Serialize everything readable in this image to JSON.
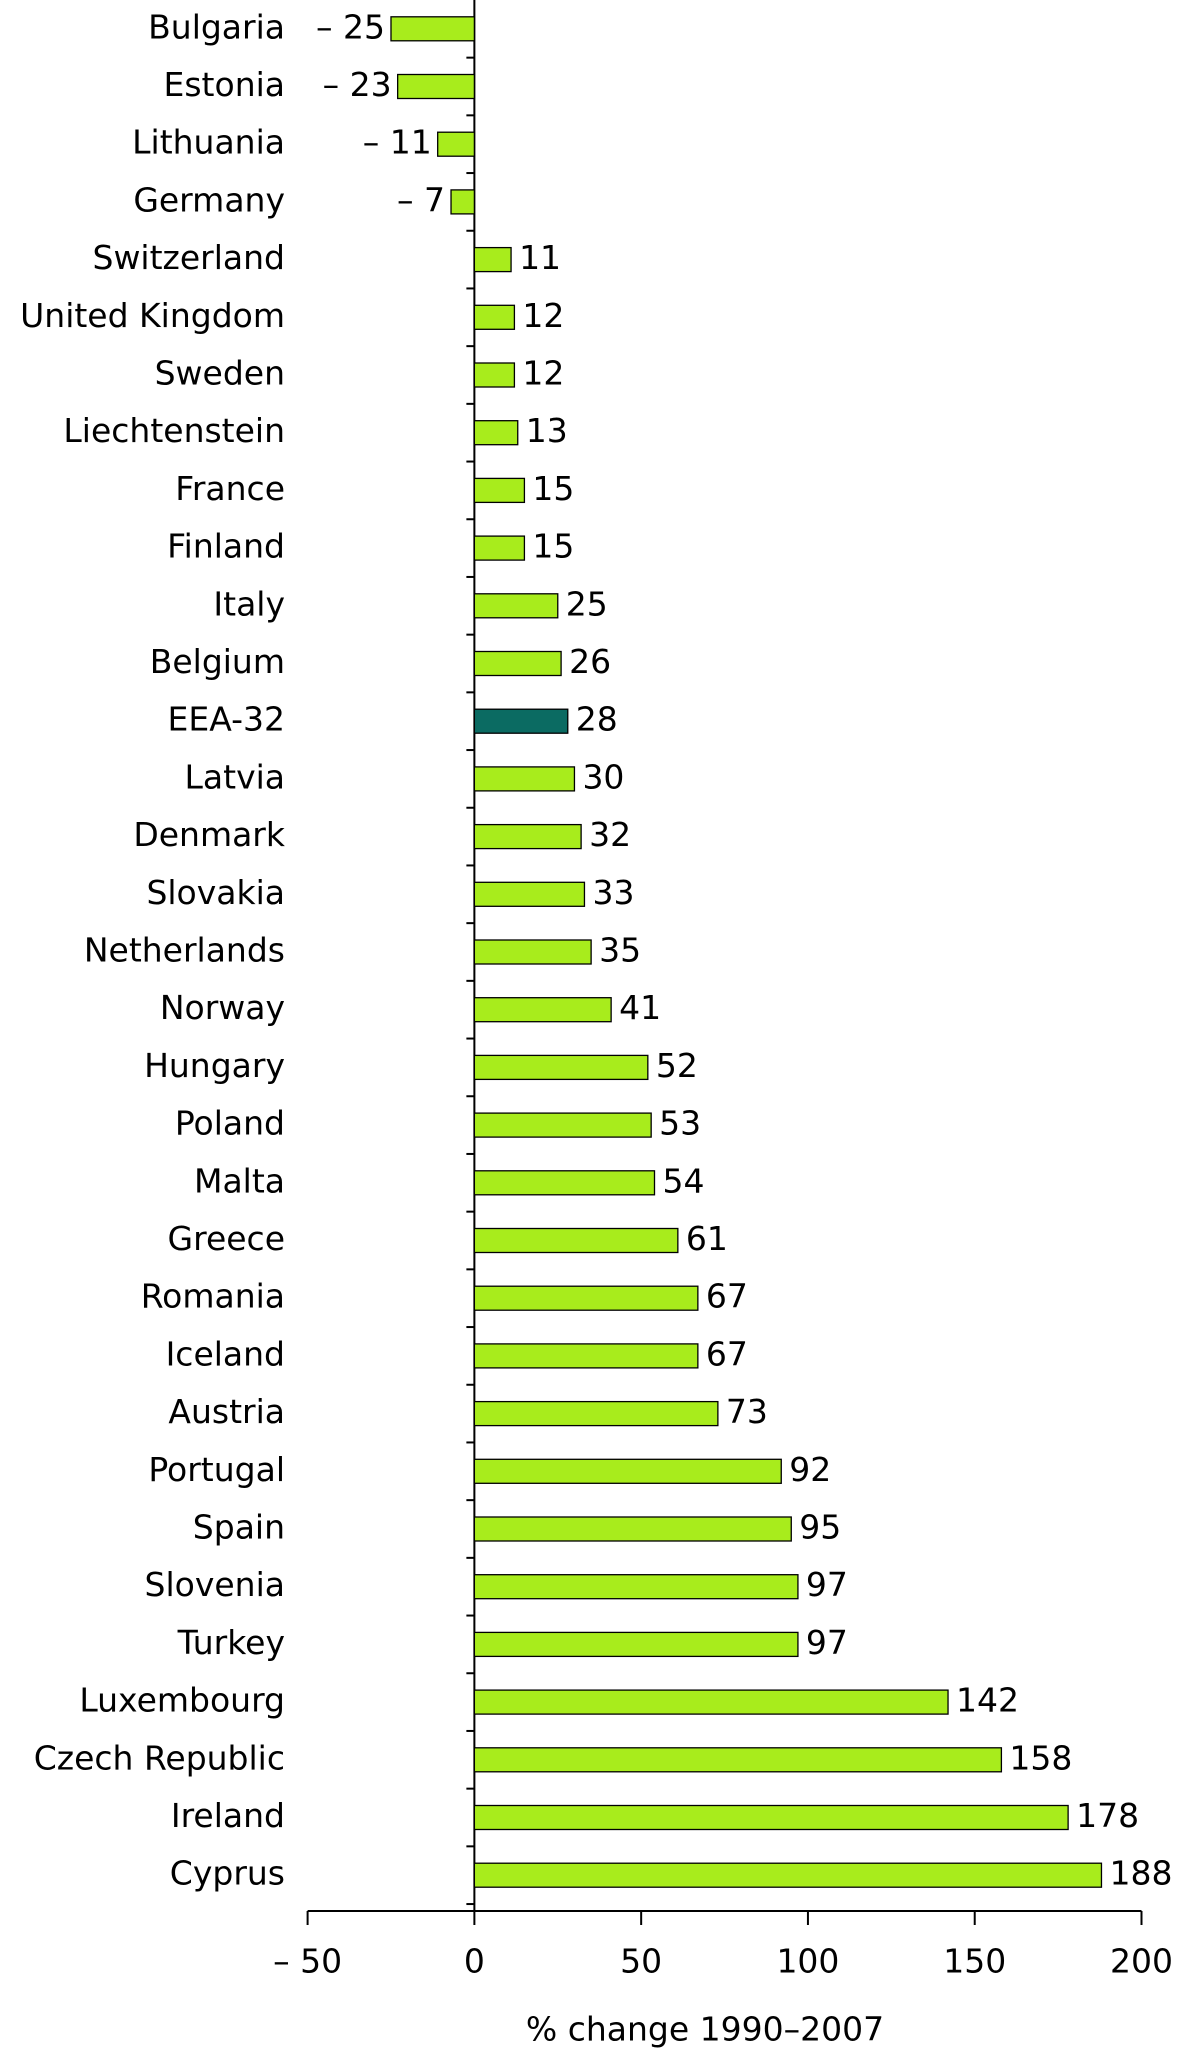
{
  "chart_data": {
    "type": "barh",
    "x_label": "% change 1990–2007",
    "categories": [
      "Bulgaria",
      "Estonia",
      "Lithuania",
      "Germany",
      "Switzerland",
      "United Kingdom",
      "Sweden",
      "Liechtenstein",
      "France",
      "Finland",
      "Italy",
      "Belgium",
      "EEA-32",
      "Latvia",
      "Denmark",
      "Slovakia",
      "Netherlands",
      "Norway",
      "Hungary",
      "Poland",
      "Malta",
      "Greece",
      "Romania",
      "Iceland",
      "Austria",
      "Portugal",
      "Spain",
      "Slovenia",
      "Turkey",
      "Luxembourg",
      "Czech Republic",
      "Ireland",
      "Cyprus"
    ],
    "values": [
      -25,
      -23,
      -11,
      -7,
      11,
      12,
      12,
      13,
      15,
      15,
      25,
      26,
      28,
      30,
      32,
      33,
      35,
      41,
      52,
      53,
      54,
      61,
      67,
      67,
      73,
      92,
      95,
      97,
      97,
      142,
      158,
      178,
      188
    ],
    "value_labels": [
      "– 25",
      "– 23",
      "– 11",
      "– 7",
      "11",
      "12",
      "12",
      "13",
      "15",
      "15",
      "25",
      "26",
      "28",
      "30",
      "32",
      "33",
      "35",
      "41",
      "52",
      "53",
      "54",
      "61",
      "67",
      "67",
      "73",
      "92",
      "95",
      "97",
      "97",
      "142",
      "158",
      "178",
      "188"
    ],
    "colors": [
      "#a8ec1c",
      "#a8ec1c",
      "#a8ec1c",
      "#a8ec1c",
      "#a8ec1c",
      "#a8ec1c",
      "#a8ec1c",
      "#a8ec1c",
      "#a8ec1c",
      "#a8ec1c",
      "#a8ec1c",
      "#a8ec1c",
      "#0b6b62",
      "#a8ec1c",
      "#a8ec1c",
      "#a8ec1c",
      "#a8ec1c",
      "#a8ec1c",
      "#a8ec1c",
      "#a8ec1c",
      "#a8ec1c",
      "#a8ec1c",
      "#a8ec1c",
      "#a8ec1c",
      "#a8ec1c",
      "#a8ec1c",
      "#a8ec1c",
      "#a8ec1c",
      "#a8ec1c",
      "#a8ec1c",
      "#a8ec1c",
      "#a8ec1c",
      "#a8ec1c"
    ],
    "xlim": [
      -50,
      200
    ],
    "xticks": [
      {
        "value": -50,
        "label": "– 50"
      },
      0,
      50,
      100,
      150,
      200
    ]
  }
}
